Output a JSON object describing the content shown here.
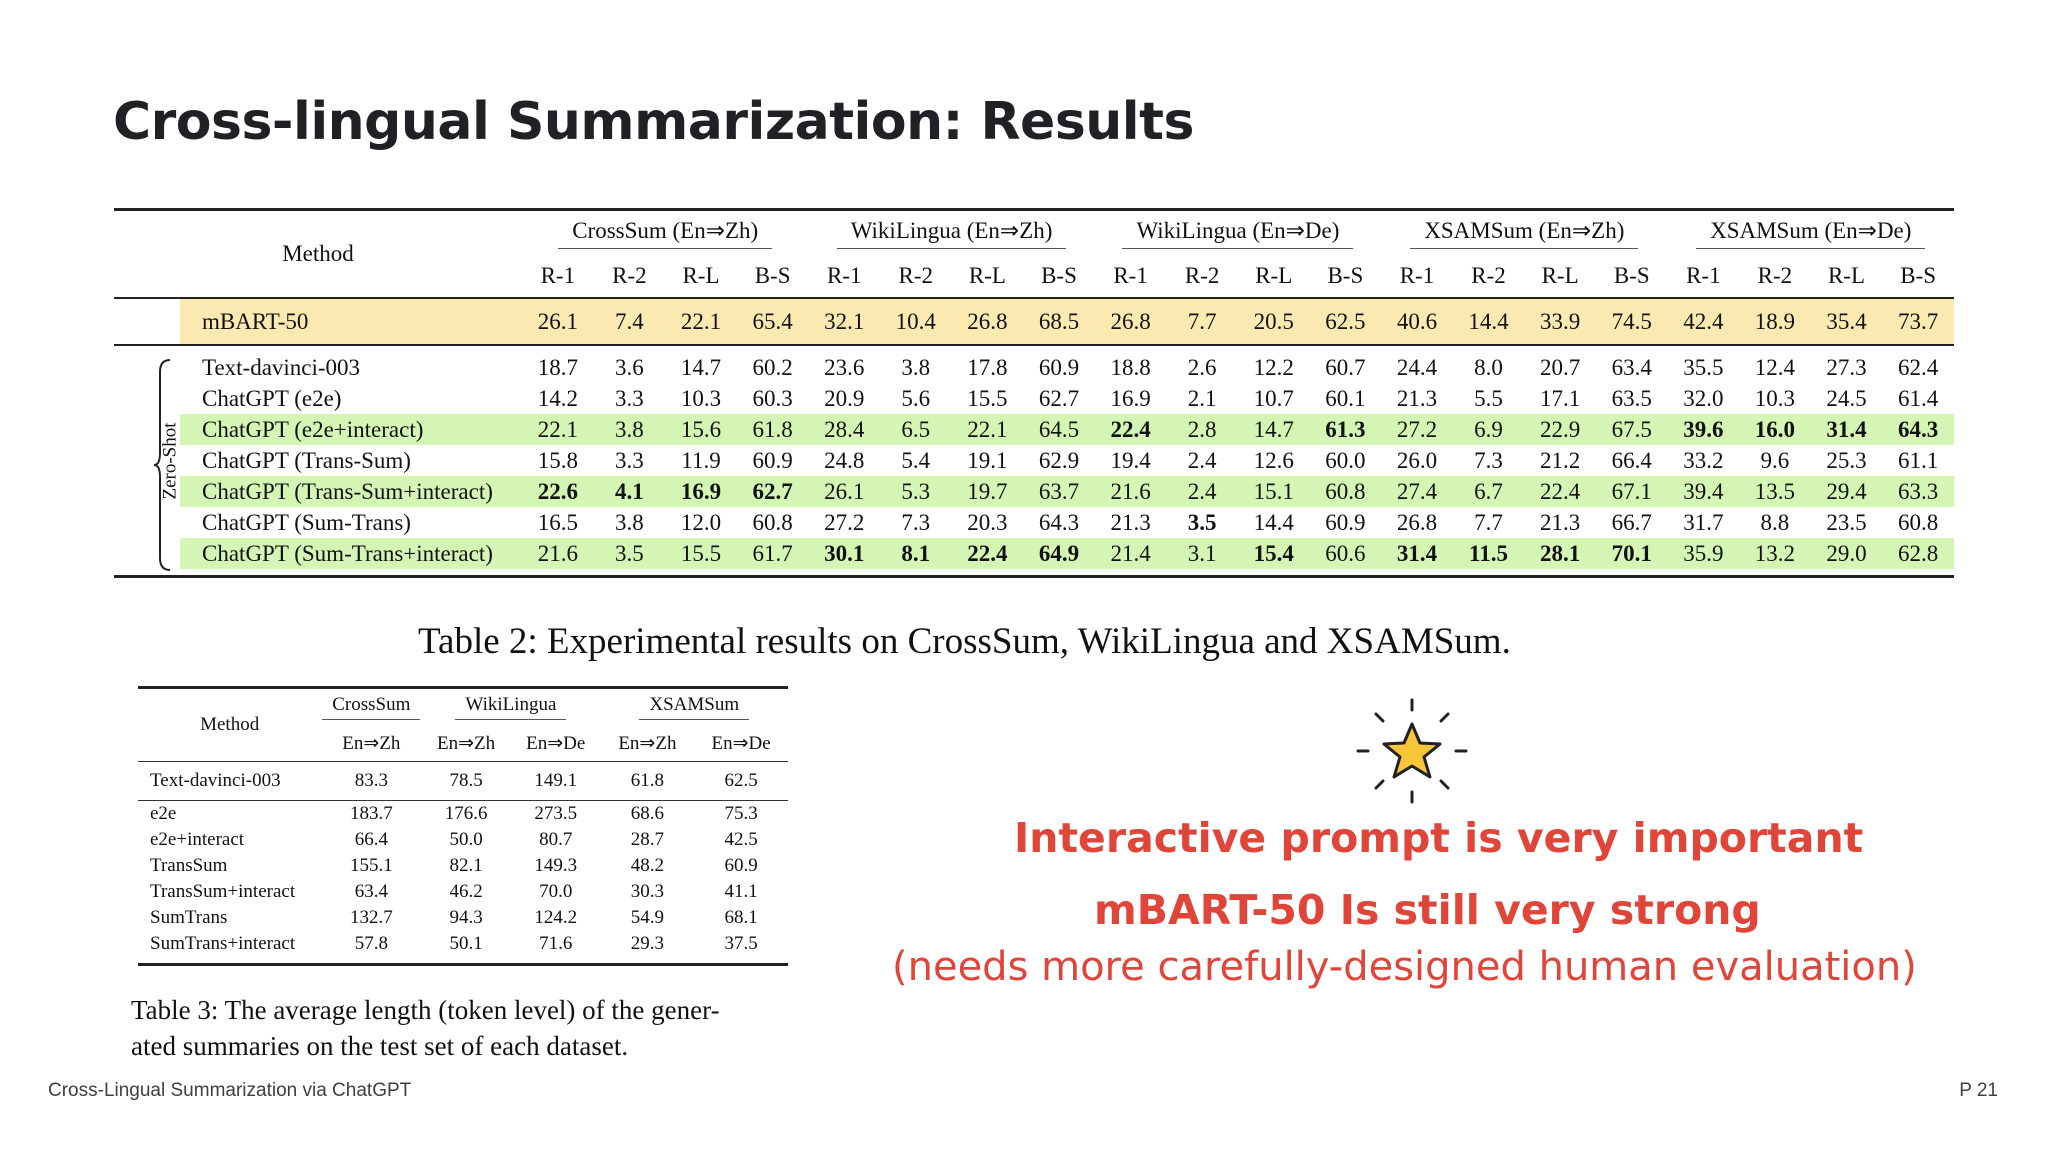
{
  "slide": {
    "title": "Cross-lingual Summarization: Results",
    "footer": "Cross-Lingual Summarization via ChatGPT",
    "page_number": "P 21"
  },
  "table2": {
    "method_header": "Method",
    "groups": [
      "CrossSum (En⇒Zh)",
      "WikiLingua (En⇒Zh)",
      "WikiLingua (En⇒De)",
      "XSAMSum (En⇒Zh)",
      "XSAMSum (En⇒De)"
    ],
    "metrics": [
      "R-1",
      "R-2",
      "R-L",
      "B-S"
    ],
    "zero_shot_label": "Zero-Shot",
    "mbart": {
      "name": "mBART-50",
      "values": [
        "26.1",
        "7.4",
        "22.1",
        "65.4",
        "32.1",
        "10.4",
        "26.8",
        "68.5",
        "26.8",
        "7.7",
        "20.5",
        "62.5",
        "40.6",
        "14.4",
        "33.9",
        "74.5",
        "42.4",
        "18.9",
        "35.4",
        "73.7"
      ]
    },
    "rows": [
      {
        "name": "Text-davinci-003",
        "values": [
          "18.7",
          "3.6",
          "14.7",
          "60.2",
          "23.6",
          "3.8",
          "17.8",
          "60.9",
          "18.8",
          "2.6",
          "12.2",
          "60.7",
          "24.4",
          "8.0",
          "20.7",
          "63.4",
          "35.5",
          "12.4",
          "27.3",
          "62.4"
        ]
      },
      {
        "name": "ChatGPT (e2e)",
        "values": [
          "14.2",
          "3.3",
          "10.3",
          "60.3",
          "20.9",
          "5.6",
          "15.5",
          "62.7",
          "16.9",
          "2.1",
          "10.7",
          "60.1",
          "21.3",
          "5.5",
          "17.1",
          "63.5",
          "32.0",
          "10.3",
          "24.5",
          "61.4"
        ]
      },
      {
        "name": "ChatGPT (e2e+interact)",
        "values": [
          "22.1",
          "3.8",
          "15.6",
          "61.8",
          "28.4",
          "6.5",
          "22.1",
          "64.5",
          "22.4",
          "2.8",
          "14.7",
          "61.3",
          "27.2",
          "6.9",
          "22.9",
          "67.5",
          "39.6",
          "16.0",
          "31.4",
          "64.3"
        ]
      },
      {
        "name": "ChatGPT (Trans-Sum)",
        "values": [
          "15.8",
          "3.3",
          "11.9",
          "60.9",
          "24.8",
          "5.4",
          "19.1",
          "62.9",
          "19.4",
          "2.4",
          "12.6",
          "60.0",
          "26.0",
          "7.3",
          "21.2",
          "66.4",
          "33.2",
          "9.6",
          "25.3",
          "61.1"
        ]
      },
      {
        "name": "ChatGPT (Trans-Sum+interact)",
        "values": [
          "22.6",
          "4.1",
          "16.9",
          "62.7",
          "26.1",
          "5.3",
          "19.7",
          "63.7",
          "21.6",
          "2.4",
          "15.1",
          "60.8",
          "27.4",
          "6.7",
          "22.4",
          "67.1",
          "39.4",
          "13.5",
          "29.4",
          "63.3"
        ]
      },
      {
        "name": "ChatGPT (Sum-Trans)",
        "values": [
          "16.5",
          "3.8",
          "12.0",
          "60.8",
          "27.2",
          "7.3",
          "20.3",
          "64.3",
          "21.3",
          "3.5",
          "14.4",
          "60.9",
          "26.8",
          "7.7",
          "21.3",
          "66.7",
          "31.7",
          "8.8",
          "23.5",
          "60.8"
        ]
      },
      {
        "name": "ChatGPT (Sum-Trans+interact)",
        "values": [
          "21.6",
          "3.5",
          "15.5",
          "61.7",
          "30.1",
          "8.1",
          "22.4",
          "64.9",
          "21.4",
          "3.1",
          "15.4",
          "60.6",
          "31.4",
          "11.5",
          "28.1",
          "70.1",
          "35.9",
          "13.2",
          "29.0",
          "62.8"
        ]
      }
    ],
    "caption": "Table 2: Experimental results on CrossSum, WikiLingua and XSAMSum."
  },
  "table3": {
    "method_header": "Method",
    "groups": [
      "CrossSum",
      "WikiLingua",
      "XSAMSum"
    ],
    "directions": [
      "En⇒Zh",
      "En⇒Zh",
      "En⇒De",
      "En⇒Zh",
      "En⇒De"
    ],
    "baseline": {
      "name": "Text-davinci-003",
      "values": [
        "83.3",
        "78.5",
        "149.1",
        "61.8",
        "62.5"
      ]
    },
    "rows": [
      {
        "name": "e2e",
        "values": [
          "183.7",
          "176.6",
          "273.5",
          "68.6",
          "75.3"
        ]
      },
      {
        "name": "e2e+interact",
        "values": [
          "66.4",
          "50.0",
          "80.7",
          "28.7",
          "42.5"
        ]
      },
      {
        "name": "TransSum",
        "values": [
          "155.1",
          "82.1",
          "149.3",
          "48.2",
          "60.9"
        ]
      },
      {
        "name": "TransSum+interact",
        "values": [
          "63.4",
          "46.2",
          "70.0",
          "30.3",
          "41.1"
        ]
      },
      {
        "name": "SumTrans",
        "values": [
          "132.7",
          "94.3",
          "124.2",
          "54.9",
          "68.1"
        ]
      },
      {
        "name": "SumTrans+interact",
        "values": [
          "57.8",
          "50.1",
          "71.6",
          "29.3",
          "37.5"
        ]
      }
    ],
    "caption_line1": "Table 3: The average length (token level) of the gener-",
    "caption_line2": "ated summaries on the test set of each dataset."
  },
  "highlights": {
    "line1": "Interactive prompt is very important",
    "line2": "mBART-50 Is still very strong",
    "line3": "(needs more carefully-designed human evaluation)",
    "accent_color": "#e0453a",
    "icon": "star-icon"
  }
}
